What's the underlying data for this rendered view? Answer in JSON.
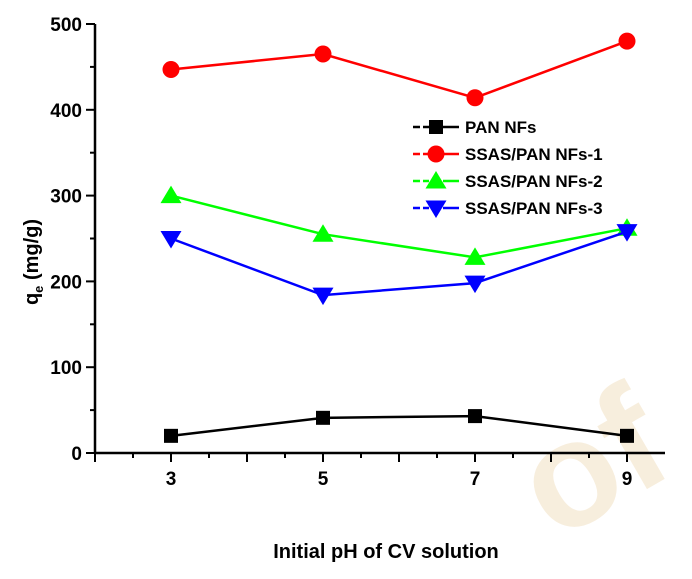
{
  "chart_data": {
    "type": "line",
    "title": "",
    "xlabel": "Initial pH of CV solution",
    "ylabel": "q",
    "ylabel_subscript": "e",
    "ylabel_units": " (mg/g)",
    "x": [
      3,
      5,
      7,
      9
    ],
    "xlim": [
      2,
      9.5
    ],
    "ylim": [
      0,
      500
    ],
    "xticks": [
      3,
      5,
      7,
      9
    ],
    "yticks": [
      0,
      100,
      200,
      300,
      400,
      500
    ],
    "grid": false,
    "legend_position": "right",
    "series": [
      {
        "name": "PAN NFs",
        "color": "#000000",
        "marker": "square",
        "values": [
          20,
          41,
          43,
          20
        ]
      },
      {
        "name": "SSAS/PAN NFs-1",
        "color": "#ff0000",
        "marker": "circle",
        "values": [
          447,
          465,
          414,
          480
        ]
      },
      {
        "name": "SSAS/PAN NFs-2",
        "color": "#00ff00",
        "marker": "triangle-up",
        "values": [
          300,
          255,
          228,
          262
        ]
      },
      {
        "name": "SSAS/PAN NFs-3",
        "color": "#0000ff",
        "marker": "triangle-down",
        "values": [
          250,
          184,
          198,
          258
        ]
      }
    ]
  },
  "watermark": {
    "text": "of",
    "color": "#f3e3c8"
  }
}
